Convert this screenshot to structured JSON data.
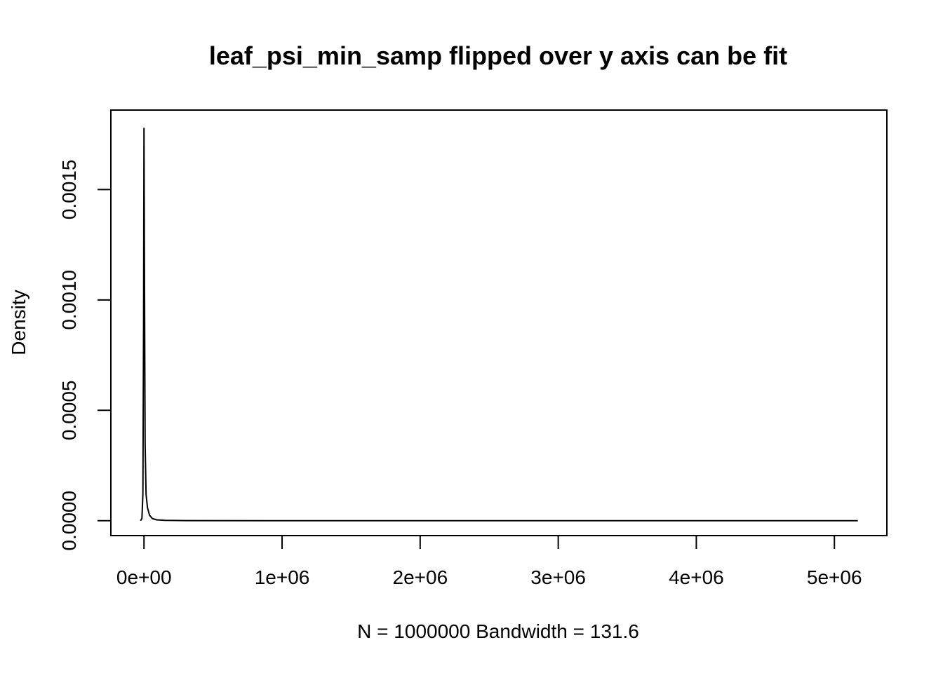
{
  "chart_data": {
    "type": "line",
    "title": "leaf_psi_min_samp flipped over y axis can be fit",
    "xlabel": "N = 1000000   Bandwidth = 131.6",
    "ylabel": "Density",
    "xlim": [
      -240000,
      5380000
    ],
    "ylim": [
      -6.75e-05,
      0.00186
    ],
    "x_ticks": [
      0,
      1000000,
      2000000,
      3000000,
      4000000,
      5000000
    ],
    "x_tick_labels": [
      "0e+00",
      "1e+06",
      "2e+06",
      "3e+06",
      "4e+06",
      "5e+06"
    ],
    "y_ticks": [
      0,
      0.0005,
      0.001,
      0.0015
    ],
    "y_tick_labels": [
      "0.0000",
      "0.0005",
      "0.0010",
      "0.0015"
    ],
    "series": [
      {
        "x": [
          -25000,
          -15000,
          -8000,
          -3000,
          0,
          3000,
          8000,
          15000,
          25000,
          40000,
          60000,
          90000,
          150000,
          300000,
          1000000,
          2000000,
          3000000,
          4000000,
          5000000,
          5170000
        ],
        "values": [
          0,
          1e-05,
          0.00012,
          0.0009,
          0.00178,
          0.0012,
          0.00035,
          0.00012,
          6e-05,
          2.5e-05,
          1e-05,
          4e-06,
          1.5e-06,
          5e-07,
          0,
          0,
          0,
          0,
          0,
          0
        ]
      }
    ],
    "grid": false,
    "legend": "none"
  }
}
